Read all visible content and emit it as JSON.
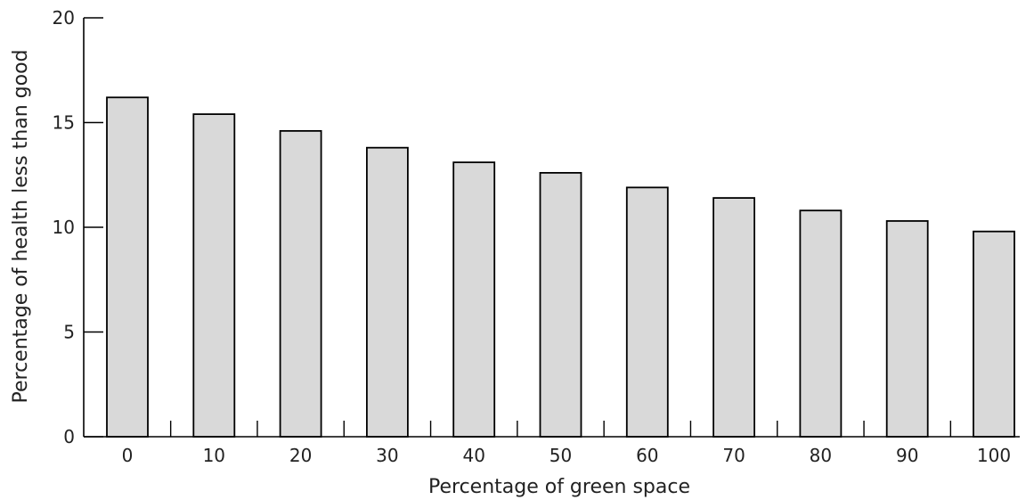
{
  "chart_data": {
    "type": "bar",
    "title": "",
    "xlabel": "Percentage of green space",
    "ylabel": "Percentage of health less than good",
    "categories": [
      "0",
      "10",
      "20",
      "30",
      "40",
      "50",
      "60",
      "70",
      "80",
      "90",
      "100"
    ],
    "values": [
      16.2,
      15.4,
      14.6,
      13.8,
      13.1,
      12.6,
      11.9,
      11.4,
      10.8,
      10.3,
      9.8
    ],
    "ylim": [
      0,
      20
    ],
    "yticks": [
      0,
      5,
      10,
      15,
      20
    ],
    "grid": false,
    "colors": {
      "bar_fill": "#d9d9d9",
      "bar_stroke": "#000000"
    }
  }
}
